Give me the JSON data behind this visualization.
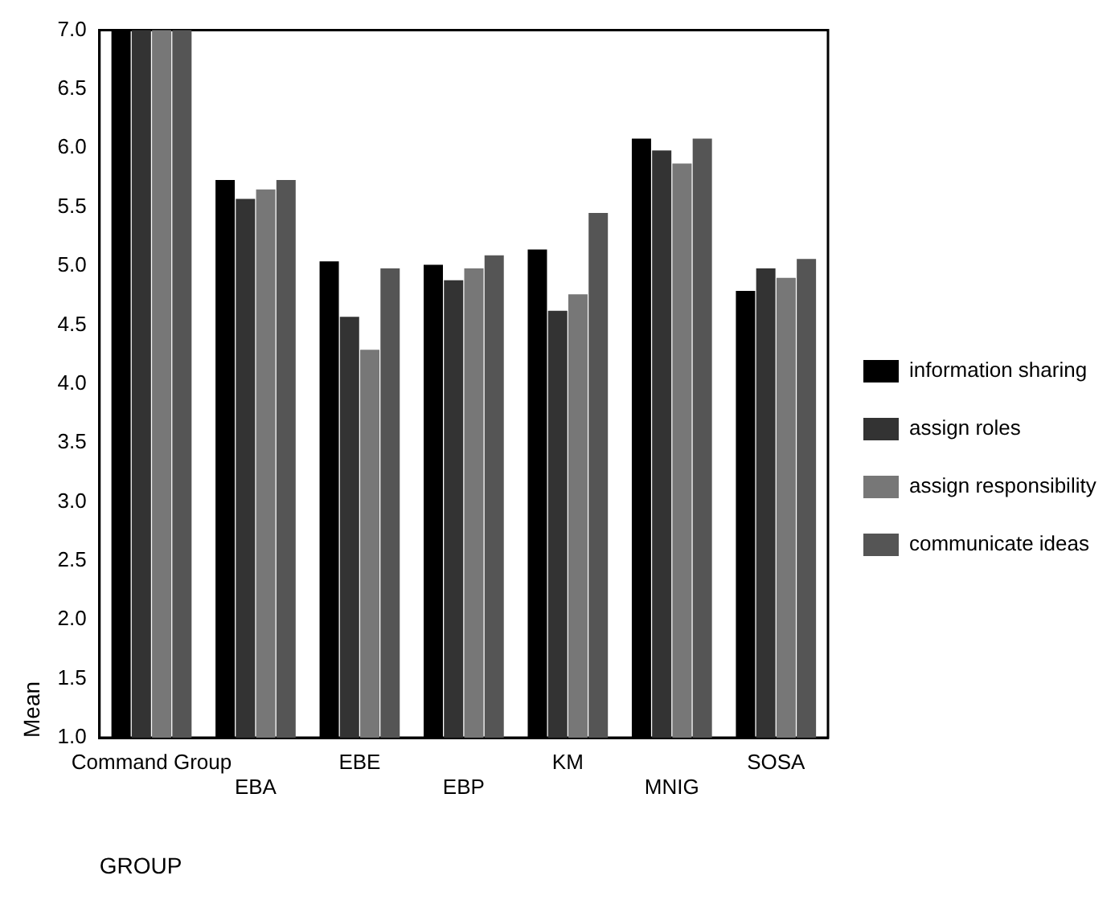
{
  "chart_data": {
    "type": "bar",
    "xlabel": "GROUP",
    "ylabel": "Mean",
    "categories": [
      "Command Group",
      "EBA",
      "EBE",
      "EBP",
      "KM",
      "MNIG",
      "SOSA"
    ],
    "series": [
      {
        "name": "information sharing",
        "color": "#000000",
        "values": [
          7.0,
          5.73,
          5.04,
          5.01,
          5.14,
          6.08,
          4.79
        ]
      },
      {
        "name": "assign roles",
        "color": "#333333",
        "values": [
          7.0,
          5.57,
          4.57,
          4.88,
          4.62,
          5.98,
          4.98
        ]
      },
      {
        "name": "assign responsibility",
        "color": "#777777",
        "values": [
          7.0,
          5.65,
          4.29,
          4.98,
          4.76,
          5.87,
          4.9
        ]
      },
      {
        "name": "communicate ideas",
        "color": "#555555",
        "values": [
          7.0,
          5.73,
          4.98,
          5.09,
          5.45,
          6.08,
          5.06
        ]
      }
    ],
    "ylim": [
      1.0,
      7.0
    ],
    "yticks": [
      {
        "value": 1,
        "label": "1.0"
      },
      1.5,
      {
        "value": 2,
        "label": "2.0"
      },
      2.5,
      {
        "value": 3,
        "label": "3.0"
      },
      3.5,
      {
        "value": 4,
        "label": "4.0"
      },
      4.5,
      {
        "value": 5,
        "label": "5.0"
      },
      5.5,
      {
        "value": 6,
        "label": "6.0"
      },
      6.5,
      {
        "value": 7,
        "label": "7.0"
      }
    ],
    "grid": false,
    "legend": "right"
  }
}
